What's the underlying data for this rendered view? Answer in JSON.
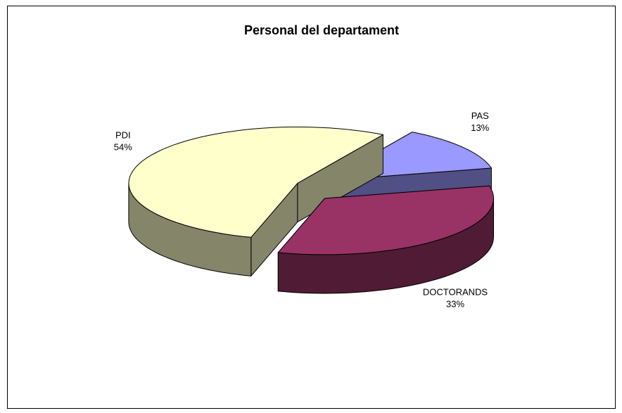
{
  "chart_data": {
    "type": "pie",
    "title": "Personal del departament",
    "categories": [
      "PDI",
      "PAS",
      "DOCTORANDS"
    ],
    "values": [
      54,
      13,
      33
    ],
    "value_labels": [
      "54%",
      "13%",
      "33%"
    ],
    "colors": [
      "#ffffcc",
      "#9999ff",
      "#993366"
    ]
  }
}
